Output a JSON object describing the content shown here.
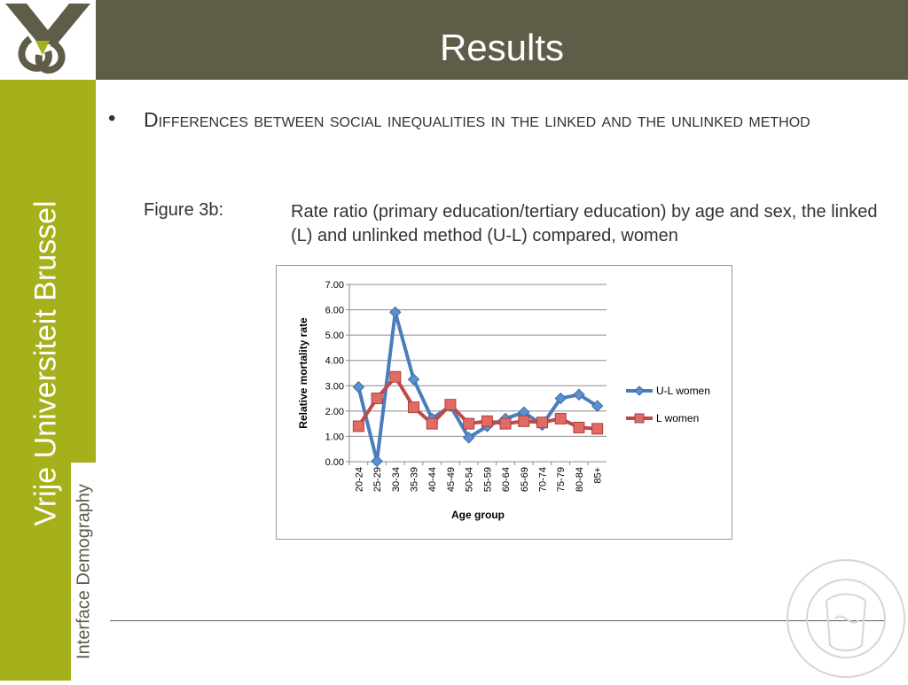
{
  "header": {
    "title": "Results"
  },
  "sidebar": {
    "university": "Vrije Universiteit Brussel",
    "department": "Interface Demography"
  },
  "content": {
    "bullet": "Differences between social inequalities in the linked and the unlinked method",
    "figure_label": "Figure 3b:",
    "figure_caption": "Rate ratio (primary education/tertiary education) by age and sex, the linked (L) and unlinked method (U-L) compared, women"
  },
  "chart_data": {
    "type": "line",
    "categories": [
      "20-24",
      "25-29",
      "30-34",
      "35-39",
      "40-44",
      "45-49",
      "50-54",
      "55-59",
      "60-64",
      "65-69",
      "70-74",
      "75-79",
      "80-84",
      "85+"
    ],
    "series": [
      {
        "name": "U-L women",
        "color": "#4a7ebb",
        "marker": "diamond",
        "values": [
          2.95,
          0.02,
          5.9,
          3.25,
          1.7,
          2.2,
          0.95,
          1.4,
          1.7,
          1.95,
          1.45,
          2.5,
          2.65,
          2.2
        ]
      },
      {
        "name": "L women",
        "color": "#be4b48",
        "marker": "square",
        "values": [
          1.4,
          2.5,
          3.35,
          2.15,
          1.5,
          2.25,
          1.5,
          1.6,
          1.5,
          1.6,
          1.55,
          1.7,
          1.35,
          1.3
        ]
      }
    ],
    "yticks": [
      "0.00",
      "1.00",
      "2.00",
      "3.00",
      "4.00",
      "5.00",
      "6.00",
      "7.00"
    ],
    "ylim": [
      0,
      7
    ],
    "xlabel": "Age group",
    "ylabel": "Relative mortality rate",
    "grid": true,
    "legend": "right"
  }
}
